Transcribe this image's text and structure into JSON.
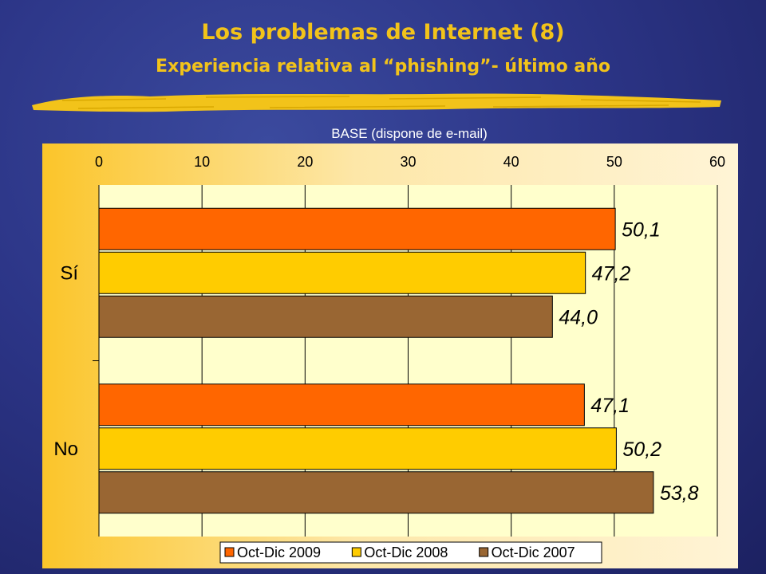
{
  "slide": {
    "title": "Los problemas de Internet (8)",
    "subtitle": "Experiencia relativa al “phishing”- último año",
    "title_color": "#f2c31a",
    "base_label": "BASE (dispone de e-mail)"
  },
  "chart_data": {
    "type": "bar",
    "orientation": "horizontal",
    "categories": [
      "Sí",
      "No"
    ],
    "series": [
      {
        "name": "Oct-Dic 2009",
        "values": [
          50.1,
          47.1
        ],
        "labels": [
          "50,1",
          "47,1"
        ],
        "color": "#ff6600"
      },
      {
        "name": "Oct-Dic 2008",
        "values": [
          47.2,
          50.2
        ],
        "labels": [
          "47,2",
          "50,2"
        ],
        "color": "#ffcc00"
      },
      {
        "name": "Oct-Dic 2007",
        "values": [
          44.0,
          53.8
        ],
        "labels": [
          "44,0",
          "53,8"
        ],
        "color": "#996633"
      }
    ],
    "xlim": [
      0,
      60
    ],
    "xticks": [
      0,
      10,
      20,
      30,
      40,
      50,
      60
    ],
    "x_axis_position": "top",
    "grid": true,
    "legend_position": "bottom"
  }
}
